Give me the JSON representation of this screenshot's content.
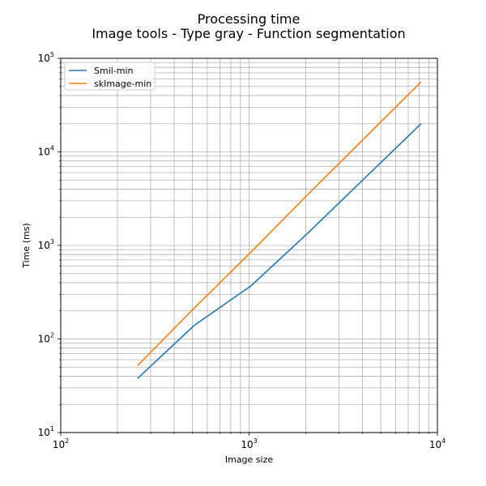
{
  "chart_data": {
    "type": "line",
    "title": [
      "Processing time",
      "Image tools - Type gray - Function segmentation"
    ],
    "xlabel": "Image size",
    "ylabel": "Time (ms)",
    "xscale": "log",
    "yscale": "log",
    "xlim": [
      100,
      10000
    ],
    "ylim": [
      10,
      100000
    ],
    "grid": "both-major-minor",
    "legend_position": "top-left",
    "x_ticks": [
      {
        "base": "10",
        "exp": "2"
      },
      {
        "base": "10",
        "exp": "3"
      },
      {
        "base": "10",
        "exp": "4"
      }
    ],
    "y_ticks": [
      {
        "base": "10",
        "exp": "1"
      },
      {
        "base": "10",
        "exp": "2"
      },
      {
        "base": "10",
        "exp": "3"
      },
      {
        "base": "10",
        "exp": "4"
      },
      {
        "base": "10",
        "exp": "5"
      }
    ],
    "series": [
      {
        "name": "Smil-min",
        "color": "#1f77b4",
        "x": [
          256,
          512,
          1024,
          2048,
          4096,
          8192
        ],
        "y": [
          38,
          140,
          370,
          1350,
          5200,
          20000
        ]
      },
      {
        "name": "skImage-min",
        "color": "#ff7f0e",
        "x": [
          256,
          512,
          1024,
          2048,
          4096,
          8192
        ],
        "y": [
          52,
          215,
          850,
          3500,
          14000,
          56000
        ]
      }
    ]
  }
}
